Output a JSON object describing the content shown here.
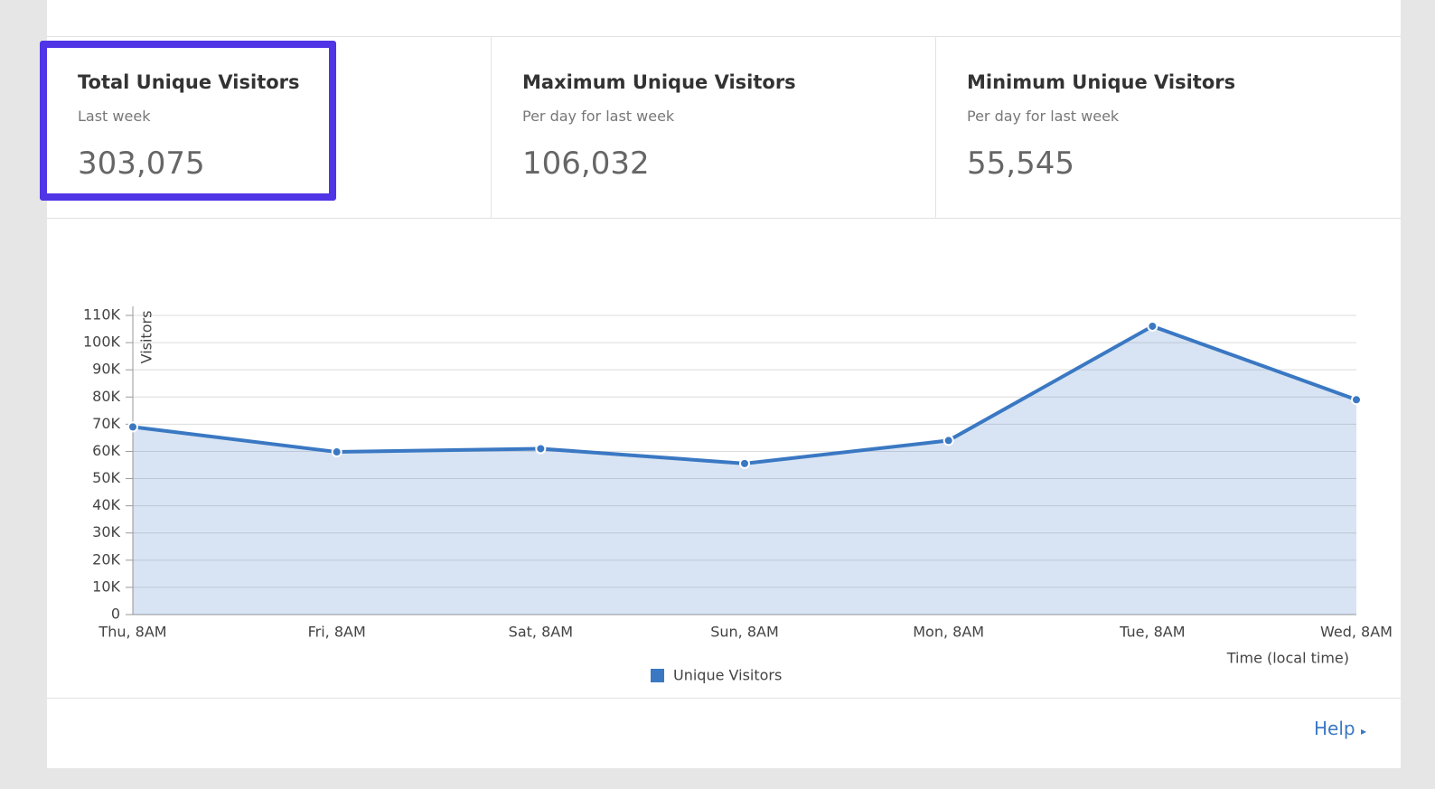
{
  "stats": [
    {
      "title": "Total Unique Visitors",
      "subtitle": "Last week",
      "value": "303,075"
    },
    {
      "title": "Maximum Unique Visitors",
      "subtitle": "Per day for last week",
      "value": "106,032"
    },
    {
      "title": "Minimum Unique Visitors",
      "subtitle": "Per day for last week",
      "value": "55,545"
    }
  ],
  "chart_data": {
    "type": "area",
    "x_label": "Time (local time)",
    "y_label": "Visitors",
    "categories": [
      "Thu, 8AM",
      "Fri, 8AM",
      "Sat, 8AM",
      "Sun, 8AM",
      "Mon, 8AM",
      "Tue, 8AM",
      "Wed, 8AM"
    ],
    "series": [
      {
        "name": "Unique Visitors",
        "color": "#3a78c3",
        "values": [
          69000,
          59800,
          61000,
          55545,
          64000,
          106032,
          79000
        ]
      }
    ],
    "ylim": [
      0,
      110000
    ],
    "yticks": [
      0,
      {
        "value": 10000,
        "label": "10K"
      },
      {
        "value": 20000,
        "label": "20K"
      },
      {
        "value": 30000,
        "label": "30K"
      },
      {
        "value": 40000,
        "label": "40K"
      },
      {
        "value": 50000,
        "label": "50K"
      },
      {
        "value": 60000,
        "label": "60K"
      },
      {
        "value": 70000,
        "label": "70K"
      },
      {
        "value": 80000,
        "label": "80K"
      },
      {
        "value": 90000,
        "label": "90K"
      },
      {
        "value": 100000,
        "label": "100K"
      },
      {
        "value": 110000,
        "label": "110K"
      }
    ],
    "grid": true
  },
  "footer": {
    "help": "Help"
  }
}
